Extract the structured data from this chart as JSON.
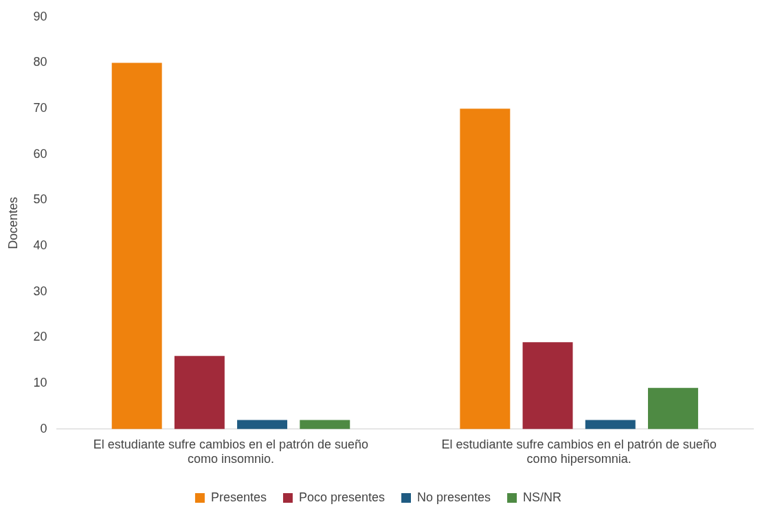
{
  "chart_data": {
    "type": "bar",
    "ylabel": "Docentes",
    "categories": [
      "El estudiante sufre cambios en el patrón de sueño como insomnio.",
      "El estudiante sufre cambios en el patrón de sueño como hipersomnia."
    ],
    "series": [
      {
        "name": "Presentes",
        "color": "#ef820d",
        "values": [
          80,
          70
        ]
      },
      {
        "name": "Poco presentes",
        "color": "#a12a3a",
        "values": [
          16,
          19
        ]
      },
      {
        "name": "No presentes",
        "color": "#1f5b82",
        "values": [
          2,
          2
        ]
      },
      {
        "name": "NS/NR",
        "color": "#4e8a43",
        "values": [
          2,
          9
        ]
      }
    ],
    "ylim": [
      0,
      90
    ],
    "yticks": [
      0,
      10,
      20,
      30,
      40,
      50,
      60,
      70,
      80,
      90
    ],
    "grid": false,
    "legend": "bottom"
  }
}
